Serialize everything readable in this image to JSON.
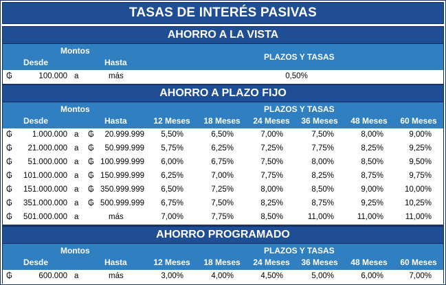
{
  "title": "TASAS DE INTERÉS PASIVAS",
  "currency_symbol": "₲",
  "sections": {
    "vista": {
      "title": "AHORRO A LA VISTA",
      "montos_label": "Montos",
      "desde_label": "Desde",
      "hasta_label": "Hasta",
      "plazos_label": "PLAZOS Y TASAS",
      "row": {
        "desde": "100.000",
        "a": "a",
        "hasta": "más",
        "tasa": "0,50%"
      }
    },
    "fijo": {
      "title": "AHORRO A PLAZO FIJO",
      "montos_label": "Montos",
      "desde_label": "Desde",
      "hasta_label": "Hasta",
      "plazos_label": "PLAZOS Y TASAS",
      "terms": [
        "12 Meses",
        "18 Meses",
        "24 Meses",
        "36 Meses",
        "48 Meses",
        "60 Meses"
      ],
      "rows": [
        {
          "desde": "1.000.000",
          "a": "a",
          "hasta_cur": "₲",
          "hasta": "20.999.999",
          "rates": [
            "5,50%",
            "6,50%",
            "7,00%",
            "7,50%",
            "8,00%",
            "9,00%"
          ]
        },
        {
          "desde": "21.000.000",
          "a": "a",
          "hasta_cur": "₲",
          "hasta": "50.999.999",
          "rates": [
            "5,75%",
            "6,25%",
            "7,25%",
            "7,75%",
            "8,25%",
            "9,25%"
          ]
        },
        {
          "desde": "51.000.000",
          "a": "a",
          "hasta_cur": "₲",
          "hasta": "100.999.999",
          "rates": [
            "6,00%",
            "6,75%",
            "7,50%",
            "8,00%",
            "8,50%",
            "9,50%"
          ]
        },
        {
          "desde": "101.000.000",
          "a": "a",
          "hasta_cur": "₲",
          "hasta": "150.999.999",
          "rates": [
            "6,25%",
            "7,00%",
            "7,75%",
            "8,25%",
            "8,75%",
            "9,75%"
          ]
        },
        {
          "desde": "151.000.000",
          "a": "a",
          "hasta_cur": "₲",
          "hasta": "350.999.999",
          "rates": [
            "6,50%",
            "7,25%",
            "8,00%",
            "8,50%",
            "9,00%",
            "10,00%"
          ]
        },
        {
          "desde": "351.000.000",
          "a": "a",
          "hasta_cur": "₲",
          "hasta": "500.999.999",
          "rates": [
            "6,75%",
            "7,50%",
            "8,25%",
            "8,75%",
            "9,25%",
            "10,25%"
          ]
        },
        {
          "desde": "501.000.000",
          "a": "a",
          "hasta_cur": "",
          "hasta": "más",
          "rates": [
            "7,00%",
            "7,75%",
            "8,50%",
            "11,00%",
            "11,00%",
            "11,00%"
          ]
        }
      ]
    },
    "prog": {
      "title": "AHORRO PROGRAMADO",
      "montos_label": "Montos",
      "desde_label": "Desde",
      "hasta_label": "Hasta",
      "plazos_label": "PLAZOS Y TASAS",
      "terms": [
        "12 Meses",
        "18 Meses",
        "24 Meses",
        "36 Meses",
        "48 Meses",
        "60 Meses"
      ],
      "row": {
        "desde": "600.000",
        "a": "a",
        "hasta": "más",
        "rates": [
          "3,00%",
          "4,00%",
          "4,50%",
          "5,00%",
          "6,00%",
          "7,00%"
        ]
      }
    }
  }
}
